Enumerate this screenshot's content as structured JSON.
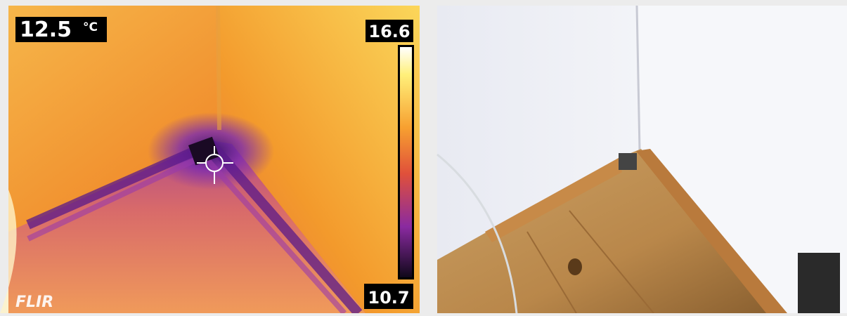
{
  "thermal": {
    "spot_temperature": "12.5",
    "unit": "°C",
    "scale_max": "16.6",
    "scale_min": "10.7",
    "brand": "FLIR"
  }
}
